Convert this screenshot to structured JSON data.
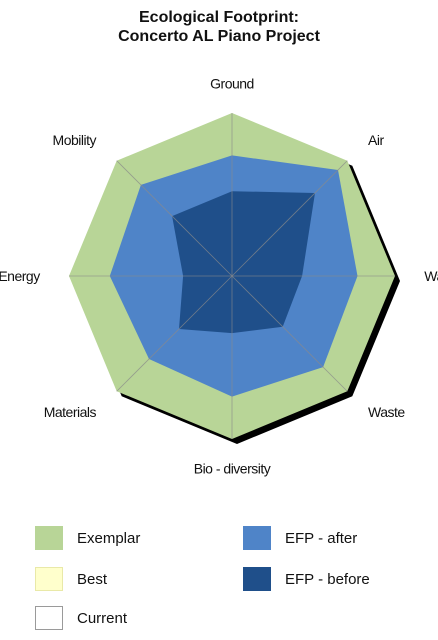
{
  "title_lines": [
    "Ecological Footprint:",
    "Concerto AL Piano Project"
  ],
  "chart_data": {
    "type": "radar",
    "title": "Ecological Footprint: Concerto AL Piano Project",
    "axes": [
      "Ground",
      "Air",
      "Water",
      "Waste",
      "Bio - diversity",
      "Materials",
      "Energy",
      "Mobility"
    ],
    "range": [
      0,
      1
    ],
    "grid": false,
    "series": [
      {
        "name": "Exemplar",
        "color": "#b8d597",
        "values": [
          1,
          1,
          1,
          1,
          1,
          1,
          1,
          1
        ]
      },
      {
        "name": "Best",
        "color": "#ffffcc",
        "values": []
      },
      {
        "name": "Current",
        "color": "#ffffff",
        "values": []
      },
      {
        "name": "EFP - after",
        "color": "#4f84c8",
        "values": [
          0.74,
          0.92,
          0.77,
          0.79,
          0.74,
          0.72,
          0.75,
          0.79
        ]
      },
      {
        "name": "EFP - before",
        "color": "#1f4f8a",
        "values": [
          0.52,
          0.72,
          0.43,
          0.44,
          0.35,
          0.46,
          0.3,
          0.52
        ]
      }
    ],
    "legend_placement": "bottom"
  }
}
